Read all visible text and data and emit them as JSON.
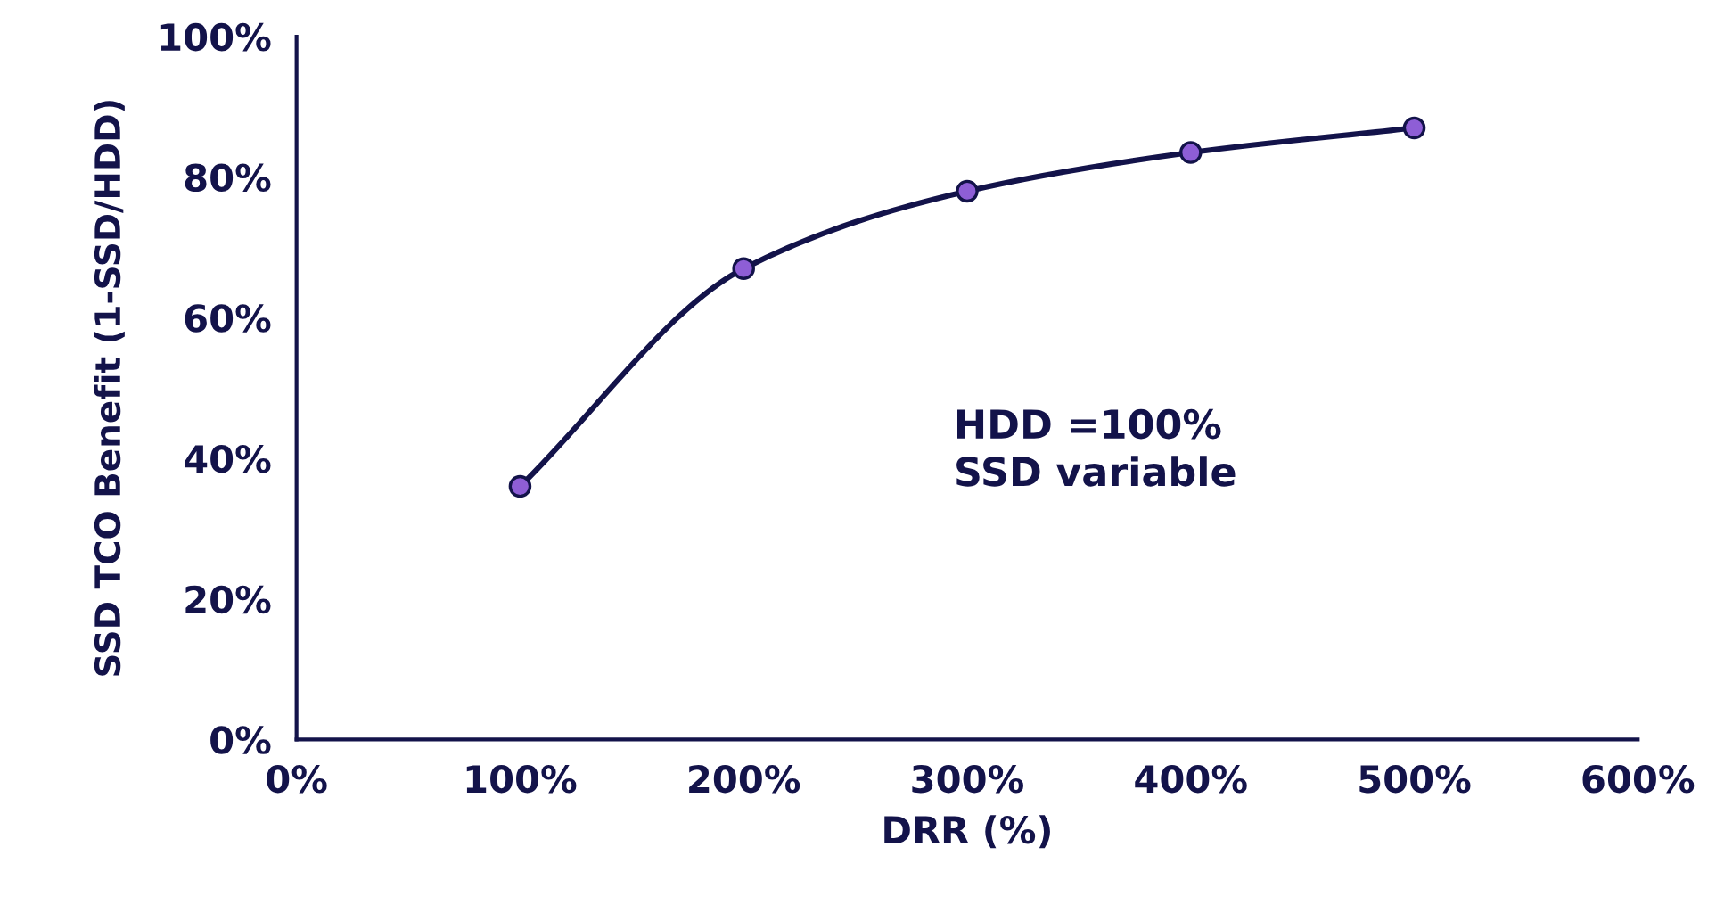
{
  "chart_data": {
    "type": "line",
    "xlabel": "DRR (%)",
    "ylabel": "SSD TCO Benefit (1-SSD/HDD)",
    "x": [
      100,
      200,
      300,
      400,
      500
    ],
    "series": [
      {
        "color": "#13134a",
        "colors": [
          "#8e5ed6",
          "#8e5ed6",
          "#8e5ed6",
          "#8e5ed6",
          "#8e5ed6"
        ],
        "values": [
          36,
          67,
          78,
          83.5,
          87
        ]
      }
    ],
    "marker": "circle",
    "line_style": "solid",
    "grid": false,
    "legend": false,
    "xlim": [
      0,
      600
    ],
    "xticks": [
      {
        "value": 0,
        "label": "0%"
      },
      {
        "value": 100,
        "label": "100%"
      },
      {
        "value": 200,
        "label": "200%"
      },
      {
        "value": 300,
        "label": "300%"
      },
      {
        "value": 400,
        "label": "400%"
      },
      {
        "value": 500,
        "label": "500%"
      },
      {
        "value": 600,
        "label": "600%"
      }
    ],
    "ylim": [
      0,
      100
    ],
    "yticks": [
      {
        "value": 0,
        "label": "0%"
      },
      {
        "value": 20,
        "label": "20%"
      },
      {
        "value": 40,
        "label": "40%"
      },
      {
        "value": 60,
        "label": "60%"
      },
      {
        "value": 80,
        "label": "80%"
      },
      {
        "value": 100,
        "label": "100%"
      }
    ],
    "annotations": [
      "HDD =100%\nSSD variable"
    ]
  }
}
